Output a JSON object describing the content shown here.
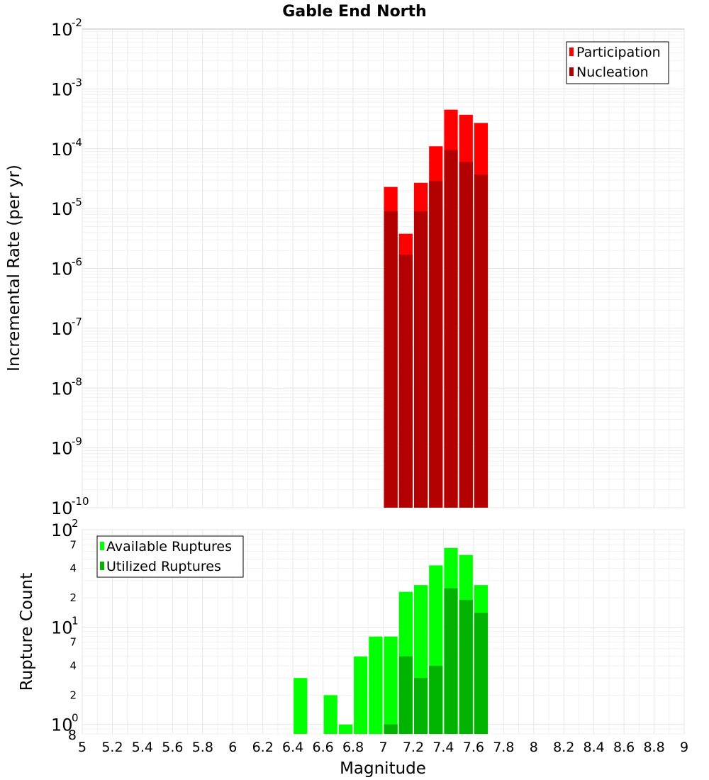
{
  "colors": {
    "participation": "#ff0000",
    "nucleation": "#b30000",
    "available": "#00ff00",
    "utilized": "#00b300"
  },
  "chart_data": [
    {
      "type": "bar",
      "title": "Gable End North",
      "xlabel": "",
      "ylabel": "Incremental Rate (per yr)",
      "xlim": [
        5,
        9
      ],
      "ylim": [
        1e-10,
        0.01
      ],
      "y_scale": "log",
      "legend_position": "top-right",
      "grid": true,
      "y_tick_exponents": [
        "-10",
        "-9",
        "-8",
        "-7",
        "-6",
        "-5",
        "-4",
        "-3",
        "-2"
      ],
      "bin_width": 0.1,
      "series": [
        {
          "name": "Participation",
          "color_key": "participation",
          "points": [
            {
              "x": 7.05,
              "y": 2.3e-05
            },
            {
              "x": 7.15,
              "y": 3.8e-06
            },
            {
              "x": 7.25,
              "y": 2.7e-05
            },
            {
              "x": 7.35,
              "y": 0.00011
            },
            {
              "x": 7.45,
              "y": 0.00045
            },
            {
              "x": 7.55,
              "y": 0.00037
            },
            {
              "x": 7.65,
              "y": 0.00027
            }
          ]
        },
        {
          "name": "Nucleation",
          "color_key": "nucleation",
          "points": [
            {
              "x": 7.05,
              "y": 9e-06
            },
            {
              "x": 7.15,
              "y": 1.7e-06
            },
            {
              "x": 7.25,
              "y": 9e-06
            },
            {
              "x": 7.35,
              "y": 2.9e-05
            },
            {
              "x": 7.45,
              "y": 9.5e-05
            },
            {
              "x": 7.55,
              "y": 6e-05
            },
            {
              "x": 7.65,
              "y": 3.7e-05
            }
          ]
        }
      ]
    },
    {
      "type": "bar",
      "title": "",
      "xlabel": "Magnitude",
      "ylabel": "Rupture Count",
      "xlim": [
        5,
        9
      ],
      "ylim": [
        0.8,
        100
      ],
      "y_scale": "log",
      "legend_position": "top-left",
      "grid": true,
      "x_ticks": [
        "5",
        "5.2",
        "5.4",
        "5.6",
        "5.8",
        "6",
        "6.2",
        "6.4",
        "6.6",
        "6.8",
        "7",
        "7.2",
        "7.4",
        "7.6",
        "7.8",
        "8",
        "8.2",
        "8.4",
        "8.6",
        "8.8",
        "9"
      ],
      "y_major_ticks": [
        {
          "value": 1,
          "exp": "0"
        },
        {
          "value": 10,
          "exp": "1"
        },
        {
          "value": 100,
          "exp": "2"
        }
      ],
      "y_minor_ticks": [
        {
          "value": 0.8,
          "label": "8"
        },
        {
          "value": 2,
          "label": "2"
        },
        {
          "value": 4,
          "label": "4"
        },
        {
          "value": 7,
          "label": "7"
        },
        {
          "value": 20,
          "label": "2"
        },
        {
          "value": 40,
          "label": "4"
        },
        {
          "value": 70,
          "label": "7"
        }
      ],
      "bin_width": 0.1,
      "series": [
        {
          "name": "Available Ruptures",
          "color_key": "available",
          "points": [
            {
              "x": 6.45,
              "y": 3
            },
            {
              "x": 6.65,
              "y": 2
            },
            {
              "x": 6.75,
              "y": 1
            },
            {
              "x": 6.85,
              "y": 5
            },
            {
              "x": 6.95,
              "y": 8
            },
            {
              "x": 7.05,
              "y": 8
            },
            {
              "x": 7.15,
              "y": 23
            },
            {
              "x": 7.25,
              "y": 27
            },
            {
              "x": 7.35,
              "y": 43
            },
            {
              "x": 7.45,
              "y": 65
            },
            {
              "x": 7.55,
              "y": 55
            },
            {
              "x": 7.65,
              "y": 27
            }
          ]
        },
        {
          "name": "Utilized Ruptures",
          "color_key": "utilized",
          "points": [
            {
              "x": 7.05,
              "y": 1
            },
            {
              "x": 7.15,
              "y": 5
            },
            {
              "x": 7.25,
              "y": 3
            },
            {
              "x": 7.35,
              "y": 4
            },
            {
              "x": 7.45,
              "y": 25
            },
            {
              "x": 7.55,
              "y": 19
            },
            {
              "x": 7.65,
              "y": 14
            }
          ]
        }
      ]
    }
  ]
}
